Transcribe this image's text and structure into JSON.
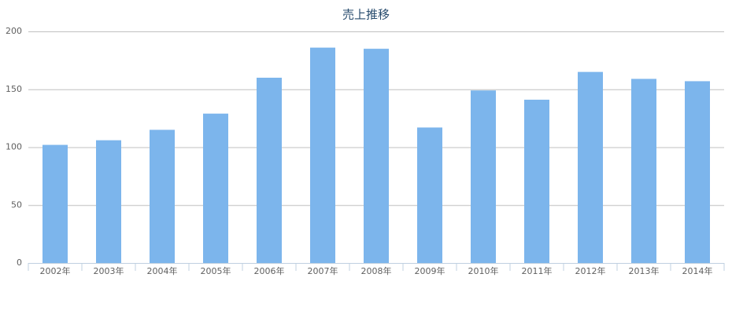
{
  "chart_data": {
    "type": "bar",
    "title": "売上推移",
    "categories": [
      "2002年",
      "2003年",
      "2004年",
      "2005年",
      "2006年",
      "2007年",
      "2008年",
      "2009年",
      "2010年",
      "2011年",
      "2012年",
      "2013年",
      "2014年"
    ],
    "values": [
      102,
      106,
      115,
      129,
      160,
      186,
      185,
      117,
      149,
      141,
      165,
      159,
      157
    ],
    "color": "#7cb5ec",
    "ylim": [
      0,
      200
    ],
    "yticks": [
      0,
      50,
      100,
      150,
      200
    ],
    "grid": true
  }
}
